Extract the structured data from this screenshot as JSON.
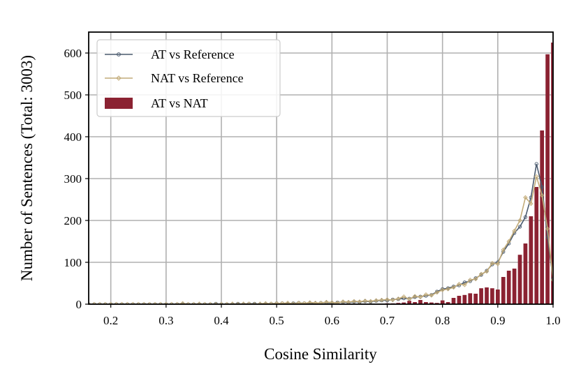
{
  "chart_data": {
    "type": "bar+line",
    "xlabel": "Cosine Similarity",
    "ylabel": "Number of Sentences (Total: 3003)",
    "xlim": [
      0.16,
      1.0
    ],
    "ylim": [
      0,
      650
    ],
    "grid": true,
    "legend_placement": "top-left",
    "x_ticks": [
      0.2,
      0.3,
      0.4,
      0.5,
      0.6,
      0.7,
      0.8,
      0.9,
      1.0
    ],
    "x_tick_labels": [
      "0.2",
      "0.3",
      "0.4",
      "0.5",
      "0.6",
      "0.7",
      "0.8",
      "0.9",
      "1.0"
    ],
    "y_ticks": [
      0,
      100,
      200,
      300,
      400,
      500,
      600
    ],
    "y_tick_labels": [
      "0",
      "100",
      "200",
      "300",
      "400",
      "500",
      "600"
    ],
    "series": [
      {
        "name": "AT vs Reference",
        "type": "line",
        "color": "#4a5a6e",
        "marker": "circle",
        "x": [
          0.16,
          0.17,
          0.18,
          0.19,
          0.2,
          0.21,
          0.22,
          0.23,
          0.24,
          0.25,
          0.26,
          0.27,
          0.28,
          0.29,
          0.3,
          0.31,
          0.32,
          0.33,
          0.34,
          0.35,
          0.36,
          0.37,
          0.38,
          0.39,
          0.4,
          0.41,
          0.42,
          0.43,
          0.44,
          0.45,
          0.46,
          0.47,
          0.48,
          0.49,
          0.5,
          0.51,
          0.52,
          0.53,
          0.54,
          0.55,
          0.56,
          0.57,
          0.58,
          0.59,
          0.6,
          0.61,
          0.62,
          0.63,
          0.64,
          0.65,
          0.66,
          0.67,
          0.68,
          0.69,
          0.7,
          0.71,
          0.72,
          0.73,
          0.74,
          0.75,
          0.76,
          0.77,
          0.78,
          0.79,
          0.8,
          0.81,
          0.82,
          0.83,
          0.84,
          0.85,
          0.86,
          0.87,
          0.88,
          0.89,
          0.9,
          0.91,
          0.92,
          0.93,
          0.94,
          0.95,
          0.96,
          0.97,
          0.98,
          0.99,
          1.0
        ],
        "y": [
          0,
          0,
          0,
          0,
          0,
          0,
          0,
          0,
          0,
          0,
          0,
          0,
          0,
          0,
          0,
          0,
          0,
          0,
          0,
          0,
          0,
          0,
          0,
          1,
          0,
          0,
          0,
          1,
          0,
          1,
          1,
          0,
          1,
          1,
          2,
          2,
          1,
          2,
          3,
          2,
          3,
          2,
          3,
          4,
          3,
          4,
          5,
          4,
          6,
          5,
          7,
          6,
          8,
          9,
          9,
          11,
          12,
          14,
          13,
          17,
          18,
          20,
          22,
          30,
          36,
          38,
          42,
          45,
          52,
          55,
          62,
          70,
          80,
          95,
          100,
          125,
          145,
          170,
          185,
          208,
          255,
          335,
          280,
          160,
          60
        ]
      },
      {
        "name": "NAT vs Reference",
        "type": "line",
        "color": "#c2ab78",
        "marker": "diamond",
        "x": [
          0.16,
          0.17,
          0.18,
          0.19,
          0.2,
          0.21,
          0.22,
          0.23,
          0.24,
          0.25,
          0.26,
          0.27,
          0.28,
          0.29,
          0.3,
          0.31,
          0.32,
          0.33,
          0.34,
          0.35,
          0.36,
          0.37,
          0.38,
          0.39,
          0.4,
          0.41,
          0.42,
          0.43,
          0.44,
          0.45,
          0.46,
          0.47,
          0.48,
          0.49,
          0.5,
          0.51,
          0.52,
          0.53,
          0.54,
          0.55,
          0.56,
          0.57,
          0.58,
          0.59,
          0.6,
          0.61,
          0.62,
          0.63,
          0.64,
          0.65,
          0.66,
          0.67,
          0.68,
          0.69,
          0.7,
          0.71,
          0.72,
          0.73,
          0.74,
          0.75,
          0.76,
          0.77,
          0.78,
          0.79,
          0.8,
          0.81,
          0.82,
          0.83,
          0.84,
          0.85,
          0.86,
          0.87,
          0.88,
          0.89,
          0.9,
          0.91,
          0.92,
          0.93,
          0.94,
          0.95,
          0.96,
          0.97,
          0.98,
          0.99,
          1.0
        ],
        "y": [
          0,
          0,
          0,
          0,
          0,
          0,
          0,
          0,
          0,
          0,
          0,
          0,
          0,
          0,
          0,
          0,
          0,
          2,
          0,
          0,
          1,
          0,
          0,
          0,
          0,
          0,
          1,
          0,
          1,
          1,
          0,
          1,
          2,
          1,
          2,
          2,
          3,
          1,
          3,
          2,
          4,
          3,
          3,
          5,
          4,
          3,
          6,
          5,
          7,
          6,
          8,
          7,
          9,
          10,
          11,
          10,
          13,
          18,
          12,
          19,
          17,
          23,
          21,
          28,
          34,
          36,
          40,
          48,
          46,
          58,
          60,
          72,
          78,
          98,
          96,
          130,
          150,
          175,
          200,
          255,
          240,
          305,
          260,
          180,
          58
        ]
      },
      {
        "name": "AT vs NAT",
        "type": "bar",
        "color": "#8b2232",
        "x": [
          0.69,
          0.7,
          0.71,
          0.72,
          0.73,
          0.74,
          0.75,
          0.76,
          0.77,
          0.78,
          0.79,
          0.8,
          0.81,
          0.82,
          0.83,
          0.84,
          0.85,
          0.86,
          0.87,
          0.88,
          0.89,
          0.9,
          0.91,
          0.92,
          0.93,
          0.94,
          0.95,
          0.96,
          0.97,
          0.98,
          0.99,
          1.0
        ],
        "y": [
          1,
          2,
          2,
          3,
          4,
          8,
          5,
          10,
          5,
          4,
          3,
          9,
          5,
          15,
          20,
          22,
          26,
          25,
          38,
          40,
          38,
          35,
          65,
          80,
          85,
          118,
          145,
          210,
          280,
          415,
          597,
          625
        ]
      }
    ]
  }
}
